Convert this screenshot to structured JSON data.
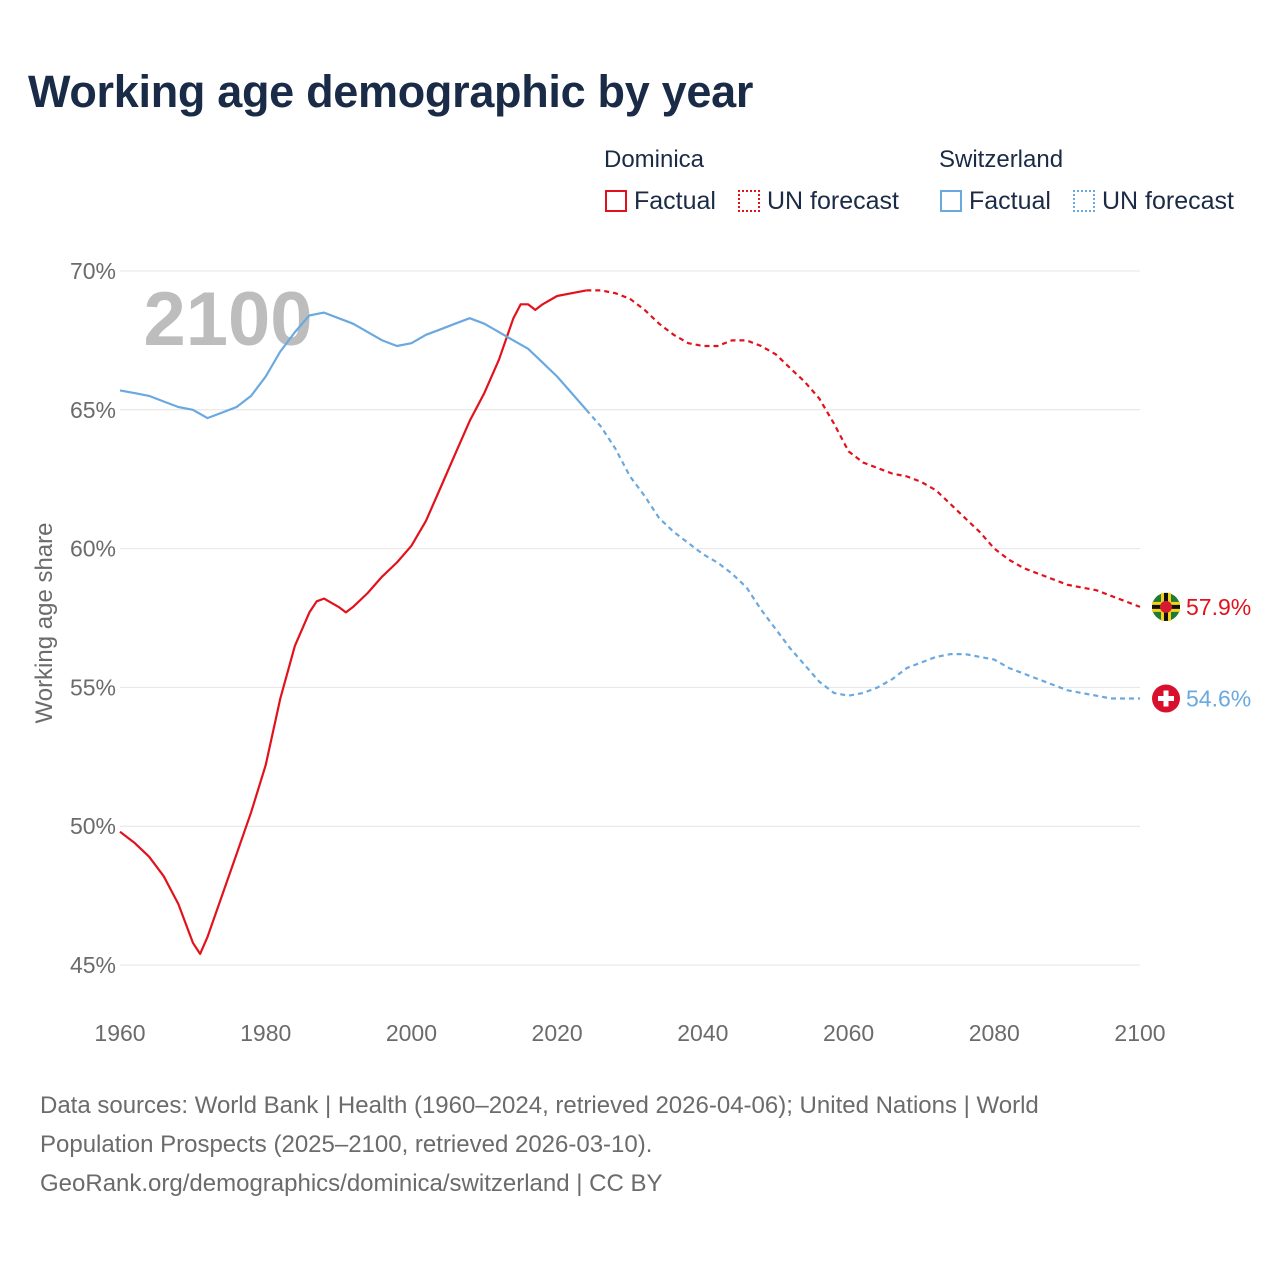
{
  "page": {
    "title": "Working age demographic by year",
    "footer": {
      "line1": "Data sources: World Bank | Health (1960–2024, retrieved 2026-04-06); United Nations | World",
      "line2": "Population Prospects (2025–2100, retrieved 2026-03-10).",
      "line3": "GeoRank.org/demographics/dominica/switzerland | CC BY"
    }
  },
  "legend": {
    "groups": [
      {
        "name": "Dominica",
        "factual_label": "Factual",
        "forecast_label": "UN forecast",
        "color": "#e2121c"
      },
      {
        "name": "Switzerland",
        "factual_label": "Factual",
        "forecast_label": "UN forecast",
        "color": "#6aa9e0"
      }
    ]
  },
  "chart_data": {
    "type": "line",
    "title": "Working age demographic by year",
    "ylabel": "Working age share",
    "xlabel": "",
    "xlim": [
      1960,
      2100
    ],
    "ylim": [
      45,
      70
    ],
    "x_ticks": [
      "1960",
      "1980",
      "2000",
      "2020",
      "2040",
      "2060",
      "2080",
      "2100"
    ],
    "y_ticks": [
      "45%",
      "50%",
      "55%",
      "60%",
      "65%",
      "70%"
    ],
    "year_watermark": "2100",
    "forecast_start": 2024,
    "series": [
      {
        "name": "Dominica",
        "color": "#e2121c",
        "end_label": "57.9%",
        "points": [
          [
            1960,
            49.8
          ],
          [
            1962,
            49.4
          ],
          [
            1964,
            48.9
          ],
          [
            1966,
            48.2
          ],
          [
            1968,
            47.2
          ],
          [
            1970,
            45.8
          ],
          [
            1971,
            45.4
          ],
          [
            1972,
            46.0
          ],
          [
            1974,
            47.5
          ],
          [
            1976,
            49.0
          ],
          [
            1978,
            50.5
          ],
          [
            1980,
            52.2
          ],
          [
            1982,
            54.6
          ],
          [
            1984,
            56.5
          ],
          [
            1986,
            57.7
          ],
          [
            1987,
            58.1
          ],
          [
            1988,
            58.2
          ],
          [
            1990,
            57.9
          ],
          [
            1991,
            57.7
          ],
          [
            1992,
            57.9
          ],
          [
            1994,
            58.4
          ],
          [
            1996,
            59.0
          ],
          [
            1998,
            59.5
          ],
          [
            2000,
            60.1
          ],
          [
            2002,
            61.0
          ],
          [
            2004,
            62.2
          ],
          [
            2006,
            63.4
          ],
          [
            2008,
            64.6
          ],
          [
            2010,
            65.6
          ],
          [
            2012,
            66.8
          ],
          [
            2014,
            68.3
          ],
          [
            2015,
            68.8
          ],
          [
            2016,
            68.8
          ],
          [
            2017,
            68.6
          ],
          [
            2018,
            68.8
          ],
          [
            2020,
            69.1
          ],
          [
            2022,
            69.2
          ],
          [
            2024,
            69.3
          ],
          [
            2026,
            69.3
          ],
          [
            2028,
            69.2
          ],
          [
            2030,
            69.0
          ],
          [
            2032,
            68.6
          ],
          [
            2034,
            68.1
          ],
          [
            2036,
            67.7
          ],
          [
            2038,
            67.4
          ],
          [
            2040,
            67.3
          ],
          [
            2042,
            67.3
          ],
          [
            2044,
            67.5
          ],
          [
            2046,
            67.5
          ],
          [
            2048,
            67.3
          ],
          [
            2050,
            67.0
          ],
          [
            2052,
            66.5
          ],
          [
            2054,
            66.0
          ],
          [
            2056,
            65.4
          ],
          [
            2058,
            64.5
          ],
          [
            2060,
            63.5
          ],
          [
            2062,
            63.1
          ],
          [
            2064,
            62.9
          ],
          [
            2066,
            62.7
          ],
          [
            2068,
            62.6
          ],
          [
            2070,
            62.4
          ],
          [
            2072,
            62.1
          ],
          [
            2074,
            61.6
          ],
          [
            2076,
            61.1
          ],
          [
            2078,
            60.6
          ],
          [
            2080,
            60.0
          ],
          [
            2082,
            59.6
          ],
          [
            2084,
            59.3
          ],
          [
            2086,
            59.1
          ],
          [
            2088,
            58.9
          ],
          [
            2090,
            58.7
          ],
          [
            2092,
            58.6
          ],
          [
            2094,
            58.5
          ],
          [
            2096,
            58.3
          ],
          [
            2098,
            58.1
          ],
          [
            2100,
            57.9
          ]
        ]
      },
      {
        "name": "Switzerland",
        "color": "#6aa9e0",
        "end_label": "54.6%",
        "points": [
          [
            1960,
            65.7
          ],
          [
            1962,
            65.6
          ],
          [
            1964,
            65.5
          ],
          [
            1966,
            65.3
          ],
          [
            1968,
            65.1
          ],
          [
            1970,
            65.0
          ],
          [
            1972,
            64.7
          ],
          [
            1974,
            64.9
          ],
          [
            1976,
            65.1
          ],
          [
            1978,
            65.5
          ],
          [
            1980,
            66.2
          ],
          [
            1982,
            67.1
          ],
          [
            1984,
            67.8
          ],
          [
            1986,
            68.4
          ],
          [
            1988,
            68.5
          ],
          [
            1990,
            68.3
          ],
          [
            1992,
            68.1
          ],
          [
            1994,
            67.8
          ],
          [
            1996,
            67.5
          ],
          [
            1998,
            67.3
          ],
          [
            2000,
            67.4
          ],
          [
            2002,
            67.7
          ],
          [
            2004,
            67.9
          ],
          [
            2006,
            68.1
          ],
          [
            2008,
            68.3
          ],
          [
            2010,
            68.1
          ],
          [
            2012,
            67.8
          ],
          [
            2014,
            67.5
          ],
          [
            2016,
            67.2
          ],
          [
            2018,
            66.7
          ],
          [
            2020,
            66.2
          ],
          [
            2022,
            65.6
          ],
          [
            2024,
            65.0
          ],
          [
            2026,
            64.4
          ],
          [
            2028,
            63.6
          ],
          [
            2030,
            62.6
          ],
          [
            2032,
            61.9
          ],
          [
            2034,
            61.1
          ],
          [
            2036,
            60.6
          ],
          [
            2038,
            60.2
          ],
          [
            2040,
            59.8
          ],
          [
            2042,
            59.5
          ],
          [
            2044,
            59.1
          ],
          [
            2046,
            58.6
          ],
          [
            2048,
            57.8
          ],
          [
            2050,
            57.1
          ],
          [
            2052,
            56.4
          ],
          [
            2054,
            55.8
          ],
          [
            2056,
            55.2
          ],
          [
            2058,
            54.8
          ],
          [
            2060,
            54.7
          ],
          [
            2062,
            54.8
          ],
          [
            2064,
            55.0
          ],
          [
            2066,
            55.3
          ],
          [
            2068,
            55.7
          ],
          [
            2070,
            55.9
          ],
          [
            2072,
            56.1
          ],
          [
            2074,
            56.2
          ],
          [
            2076,
            56.2
          ],
          [
            2078,
            56.1
          ],
          [
            2080,
            56.0
          ],
          [
            2082,
            55.7
          ],
          [
            2084,
            55.5
          ],
          [
            2086,
            55.3
          ],
          [
            2088,
            55.1
          ],
          [
            2090,
            54.9
          ],
          [
            2092,
            54.8
          ],
          [
            2094,
            54.7
          ],
          [
            2096,
            54.6
          ],
          [
            2098,
            54.6
          ],
          [
            2100,
            54.6
          ]
        ]
      }
    ]
  }
}
